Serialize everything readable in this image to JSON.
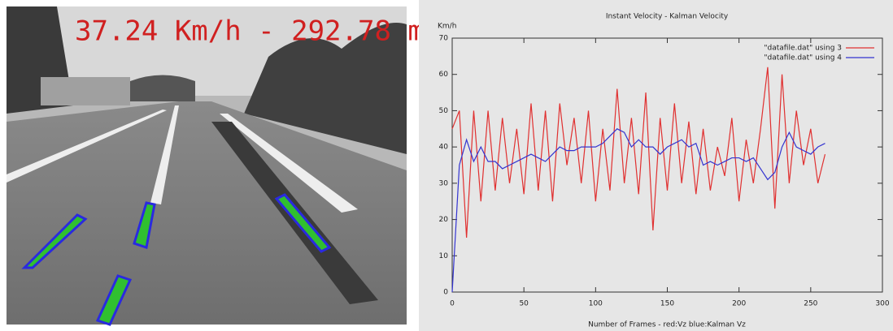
{
  "video_overlay": {
    "text": "37.24 Km/h - 292.78 m"
  },
  "chart_data": {
    "type": "line",
    "title": "Instant Velocity - Kalman Velocity",
    "ylabel": "Km/h",
    "xlabel": "Number of Frames - red:Vz blue:Kalman Vz",
    "x": [
      0,
      5,
      10,
      15,
      20,
      25,
      30,
      35,
      40,
      45,
      50,
      55,
      60,
      65,
      70,
      75,
      80,
      85,
      90,
      95,
      100,
      105,
      110,
      115,
      120,
      125,
      130,
      135,
      140,
      145,
      150,
      155,
      160,
      165,
      170,
      175,
      180,
      185,
      190,
      195,
      200,
      205,
      210,
      215,
      220,
      225,
      230,
      235,
      240,
      245,
      250,
      255,
      260
    ],
    "series": [
      {
        "name": "\"datafile.dat\" using 3",
        "color": "#e03030",
        "values": [
          45,
          50,
          15,
          50,
          25,
          50,
          28,
          48,
          30,
          45,
          27,
          52,
          28,
          50,
          25,
          52,
          35,
          48,
          30,
          50,
          25,
          45,
          28,
          56,
          30,
          48,
          27,
          55,
          17,
          48,
          28,
          52,
          30,
          47,
          27,
          45,
          28,
          40,
          32,
          48,
          25,
          42,
          30,
          45,
          62,
          23,
          60,
          30,
          50,
          35,
          45,
          30,
          38
        ]
      },
      {
        "name": "\"datafile.dat\" using 4",
        "color": "#3434d0",
        "values": [
          0,
          35,
          42,
          36,
          40,
          36,
          36,
          34,
          35,
          36,
          37,
          38,
          37,
          36,
          38,
          40,
          39,
          39,
          40,
          40,
          40,
          41,
          43,
          45,
          44,
          40,
          42,
          40,
          40,
          38,
          40,
          41,
          42,
          40,
          41,
          35,
          36,
          35,
          36,
          37,
          37,
          36,
          37,
          34,
          31,
          33,
          40,
          44,
          40,
          39,
          38,
          40,
          41
        ]
      }
    ],
    "xlim": [
      0,
      300
    ],
    "ylim": [
      0,
      70
    ],
    "xticks": [
      0,
      50,
      100,
      150,
      200,
      250,
      300
    ],
    "yticks": [
      0,
      10,
      20,
      30,
      40,
      50,
      60,
      70
    ],
    "grid": false,
    "legend": "top-right"
  }
}
